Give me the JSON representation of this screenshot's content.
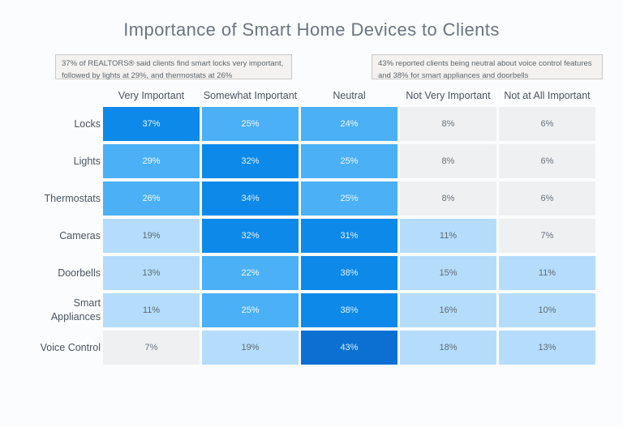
{
  "page": {
    "background": "#fbfcfd"
  },
  "title": "Importance of Smart Home Devices to Clients",
  "annotations": [
    {
      "text": "37% of REALTORS® said clients find smart locks very important, followed by lights at 29%, and thermostats at 26%"
    },
    {
      "text": "43% reported clients being neutral about voice control features and 38% for smart appliances and doorbells"
    }
  ],
  "chart_data": {
    "type": "heatmap",
    "title": "Importance of Smart Home Devices to Clients",
    "columns": [
      "Very Important",
      "Somewhat Important",
      "Neutral",
      "Not Very Important",
      "Not at All Important"
    ],
    "rows": [
      "Locks",
      "Lights",
      "Thermostats",
      "Cameras",
      "Doorbells",
      "Smart Appliances",
      "Voice Control"
    ],
    "values": [
      [
        37,
        25,
        24,
        8,
        6
      ],
      [
        29,
        32,
        25,
        8,
        6
      ],
      [
        26,
        34,
        25,
        8,
        6
      ],
      [
        19,
        32,
        31,
        11,
        7
      ],
      [
        13,
        22,
        38,
        15,
        11
      ],
      [
        11,
        25,
        38,
        16,
        10
      ],
      [
        7,
        19,
        43,
        18,
        13
      ]
    ],
    "value_suffix": "%",
    "legend": "none",
    "grid": "cell-matrix",
    "value_range": [
      0,
      43
    ],
    "color_scale": [
      {
        "min": 40,
        "bg": "#0b70d2",
        "text": "#ddeefb"
      },
      {
        "min": 30,
        "bg": "#0d89e9",
        "text": "#e6f3fd"
      },
      {
        "min": 20,
        "bg": "#4bb0f6",
        "text": "#f2f9fe"
      },
      {
        "min": 9,
        "bg": "#b5ddfb",
        "text": "#5f6a74"
      },
      {
        "min": 0,
        "bg": "#eef0f1",
        "text": "#6a737c"
      }
    ]
  }
}
